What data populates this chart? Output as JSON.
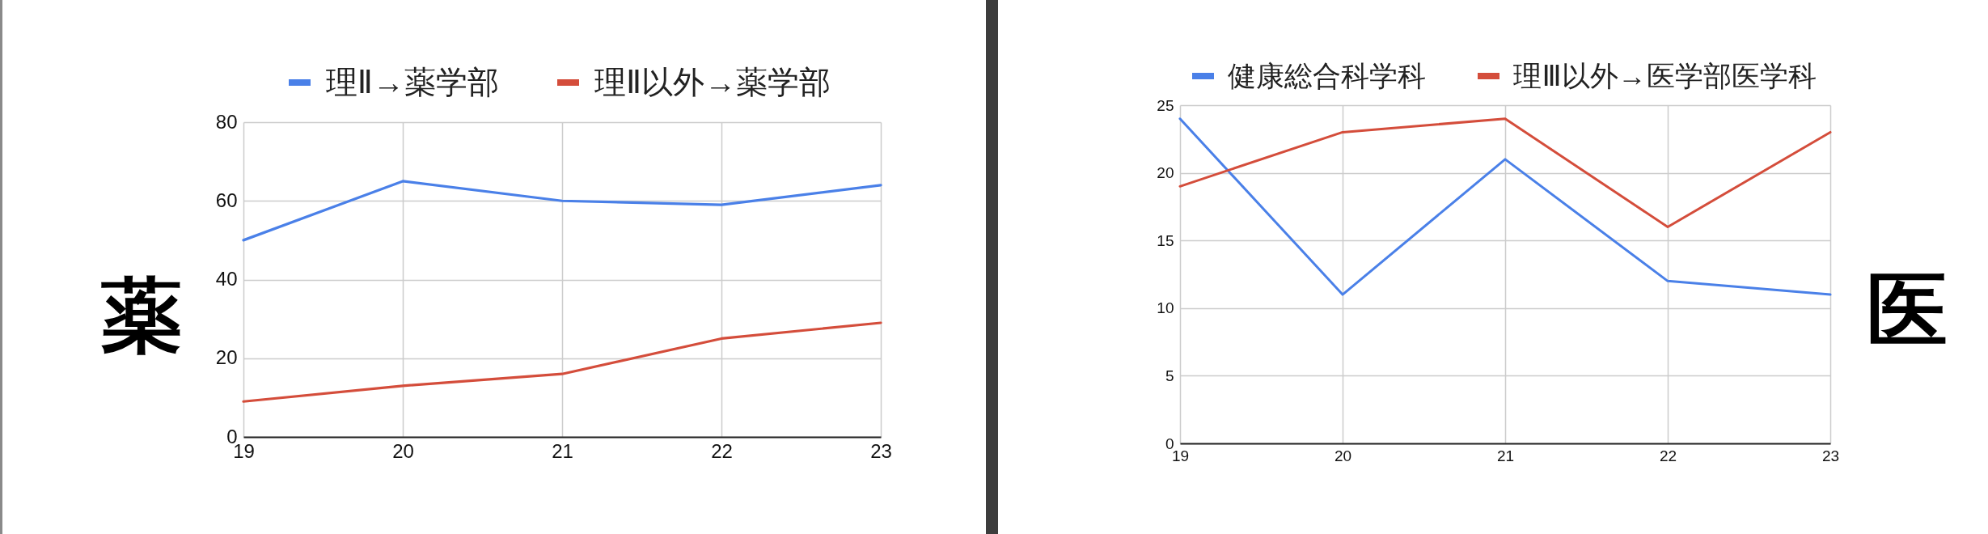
{
  "chart_data": [
    {
      "type": "line",
      "title": "薬",
      "x": [
        19,
        20,
        21,
        22,
        23
      ],
      "series": [
        {
          "name": "理Ⅱ→薬学部",
          "color": "#4a80e8",
          "values": [
            50,
            65,
            60,
            59,
            64
          ]
        },
        {
          "name": "理Ⅱ以外→薬学部",
          "color": "#d44d3b",
          "values": [
            9,
            13,
            16,
            25,
            29
          ]
        }
      ],
      "xlim": [
        19,
        23
      ],
      "xticks": [
        19,
        20,
        21,
        22,
        23
      ],
      "ylim": [
        0,
        80
      ],
      "yticks": [
        0,
        20,
        40,
        60,
        80
      ],
      "grid": true,
      "legend": "top"
    },
    {
      "type": "line",
      "title": "医",
      "x": [
        19,
        20,
        21,
        22,
        23
      ],
      "series": [
        {
          "name": "健康総合科学科",
          "color": "#4a80e8",
          "values": [
            24,
            11,
            21,
            12,
            11
          ]
        },
        {
          "name": "理Ⅲ以外→医学部医学科",
          "color": "#d44d3b",
          "values": [
            19,
            23,
            24,
            16,
            23
          ]
        }
      ],
      "xlim": [
        19,
        23
      ],
      "xticks": [
        19,
        20,
        21,
        22,
        23
      ],
      "ylim": [
        0,
        25
      ],
      "yticks": [
        0,
        5,
        10,
        15,
        20,
        25
      ],
      "grid": true,
      "legend": "top"
    }
  ]
}
